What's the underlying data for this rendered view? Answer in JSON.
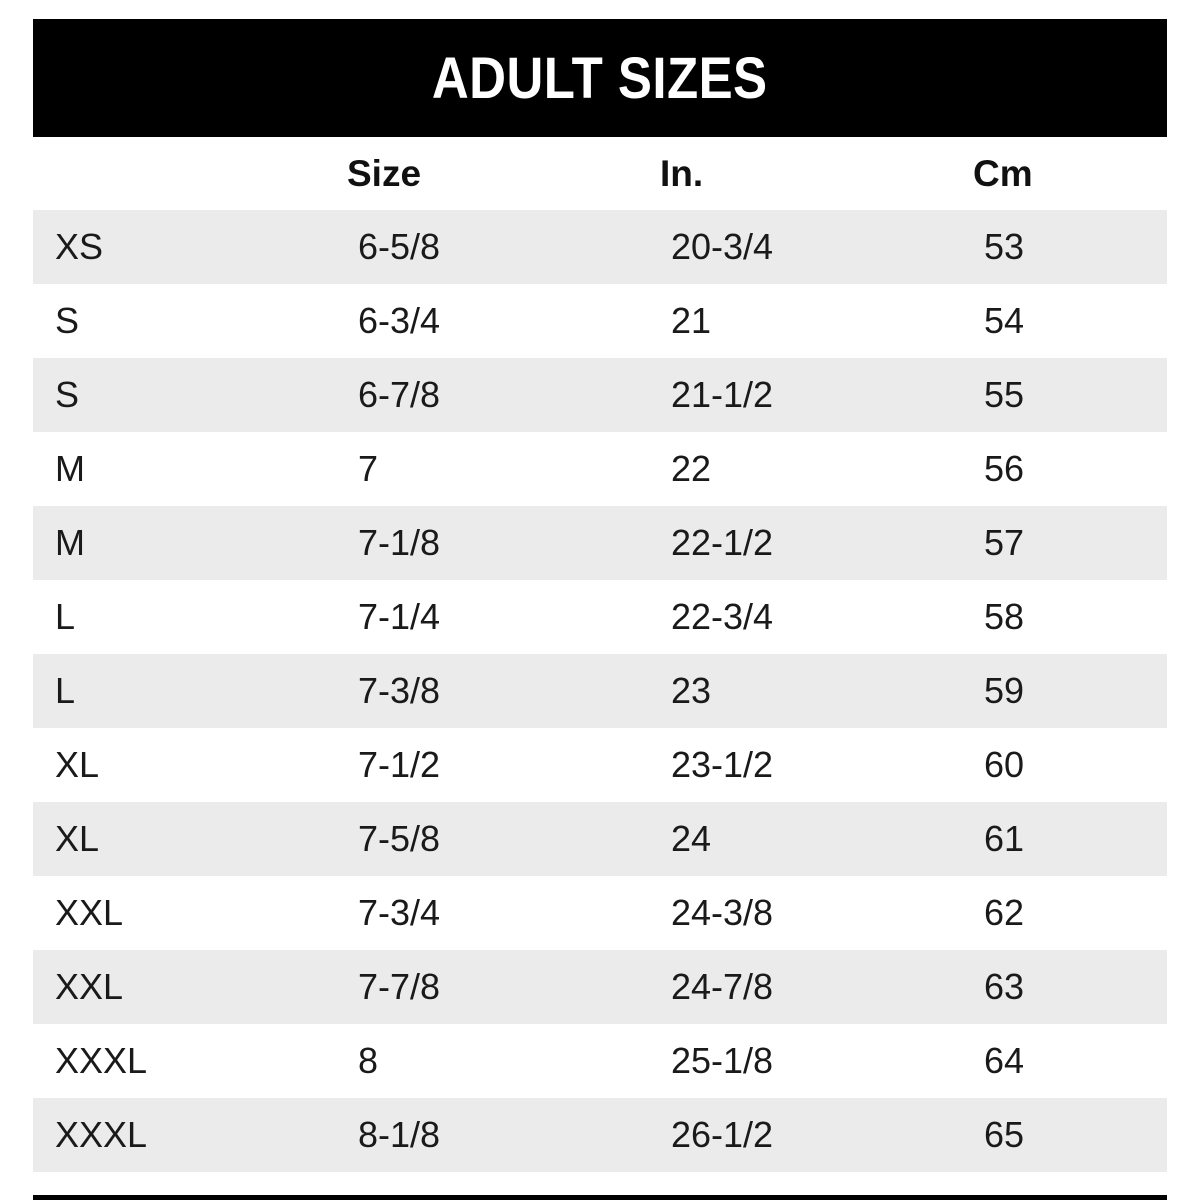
{
  "header": {
    "title": "ADULT SIZES",
    "bg_color": "#000000",
    "text_color": "#ffffff"
  },
  "table": {
    "columns": [
      "Size",
      "In.",
      "Cm"
    ],
    "stripe_color": "#ebebeb",
    "text_color": "#1a1a1a",
    "rows": [
      {
        "label": "XS",
        "size": "6-5/8",
        "inches": "20-3/4",
        "cm": "53"
      },
      {
        "label": "S",
        "size": "6-3/4",
        "inches": "21",
        "cm": "54"
      },
      {
        "label": "S",
        "size": "6-7/8",
        "inches": "21-1/2",
        "cm": "55"
      },
      {
        "label": "M",
        "size": "7",
        "inches": "22",
        "cm": "56"
      },
      {
        "label": "M",
        "size": "7-1/8",
        "inches": "22-1/2",
        "cm": "57"
      },
      {
        "label": "L",
        "size": "7-1/4",
        "inches": "22-3/4",
        "cm": "58"
      },
      {
        "label": "L",
        "size": "7-3/8",
        "inches": "23",
        "cm": "59"
      },
      {
        "label": "XL",
        "size": "7-1/2",
        "inches": "23-1/2",
        "cm": "60"
      },
      {
        "label": "XL",
        "size": "7-5/8",
        "inches": "24",
        "cm": "61"
      },
      {
        "label": "XXL",
        "size": "7-3/4",
        "inches": "24-3/8",
        "cm": "62"
      },
      {
        "label": "XXL",
        "size": "7-7/8",
        "inches": "24-7/8",
        "cm": "63"
      },
      {
        "label": "XXXL",
        "size": "8",
        "inches": "25-1/8",
        "cm": "64"
      },
      {
        "label": "XXXL",
        "size": "8-1/8",
        "inches": "26-1/2",
        "cm": "65"
      }
    ]
  },
  "chart_data": {
    "type": "table",
    "title": "ADULT SIZES",
    "columns": [
      "",
      "Size",
      "In.",
      "Cm"
    ],
    "rows": [
      [
        "XS",
        "6-5/8",
        "20-3/4",
        "53"
      ],
      [
        "S",
        "6-3/4",
        "21",
        "54"
      ],
      [
        "S",
        "6-7/8",
        "21-1/2",
        "55"
      ],
      [
        "M",
        "7",
        "22",
        "56"
      ],
      [
        "M",
        "7-1/8",
        "22-1/2",
        "57"
      ],
      [
        "L",
        "7-1/4",
        "22-3/4",
        "58"
      ],
      [
        "L",
        "7-3/8",
        "23",
        "59"
      ],
      [
        "XL",
        "7-1/2",
        "23-1/2",
        "60"
      ],
      [
        "XL",
        "7-5/8",
        "24",
        "61"
      ],
      [
        "XXL",
        "7-3/4",
        "24-3/8",
        "62"
      ],
      [
        "XXL",
        "7-7/8",
        "24-7/8",
        "63"
      ],
      [
        "XXXL",
        "8",
        "25-1/8",
        "64"
      ],
      [
        "XXXL",
        "8-1/8",
        "26-1/2",
        "65"
      ]
    ],
    "layout": {
      "striped_rows": "odd rows shaded light gray",
      "header_band": "black bar with white centered title"
    }
  }
}
